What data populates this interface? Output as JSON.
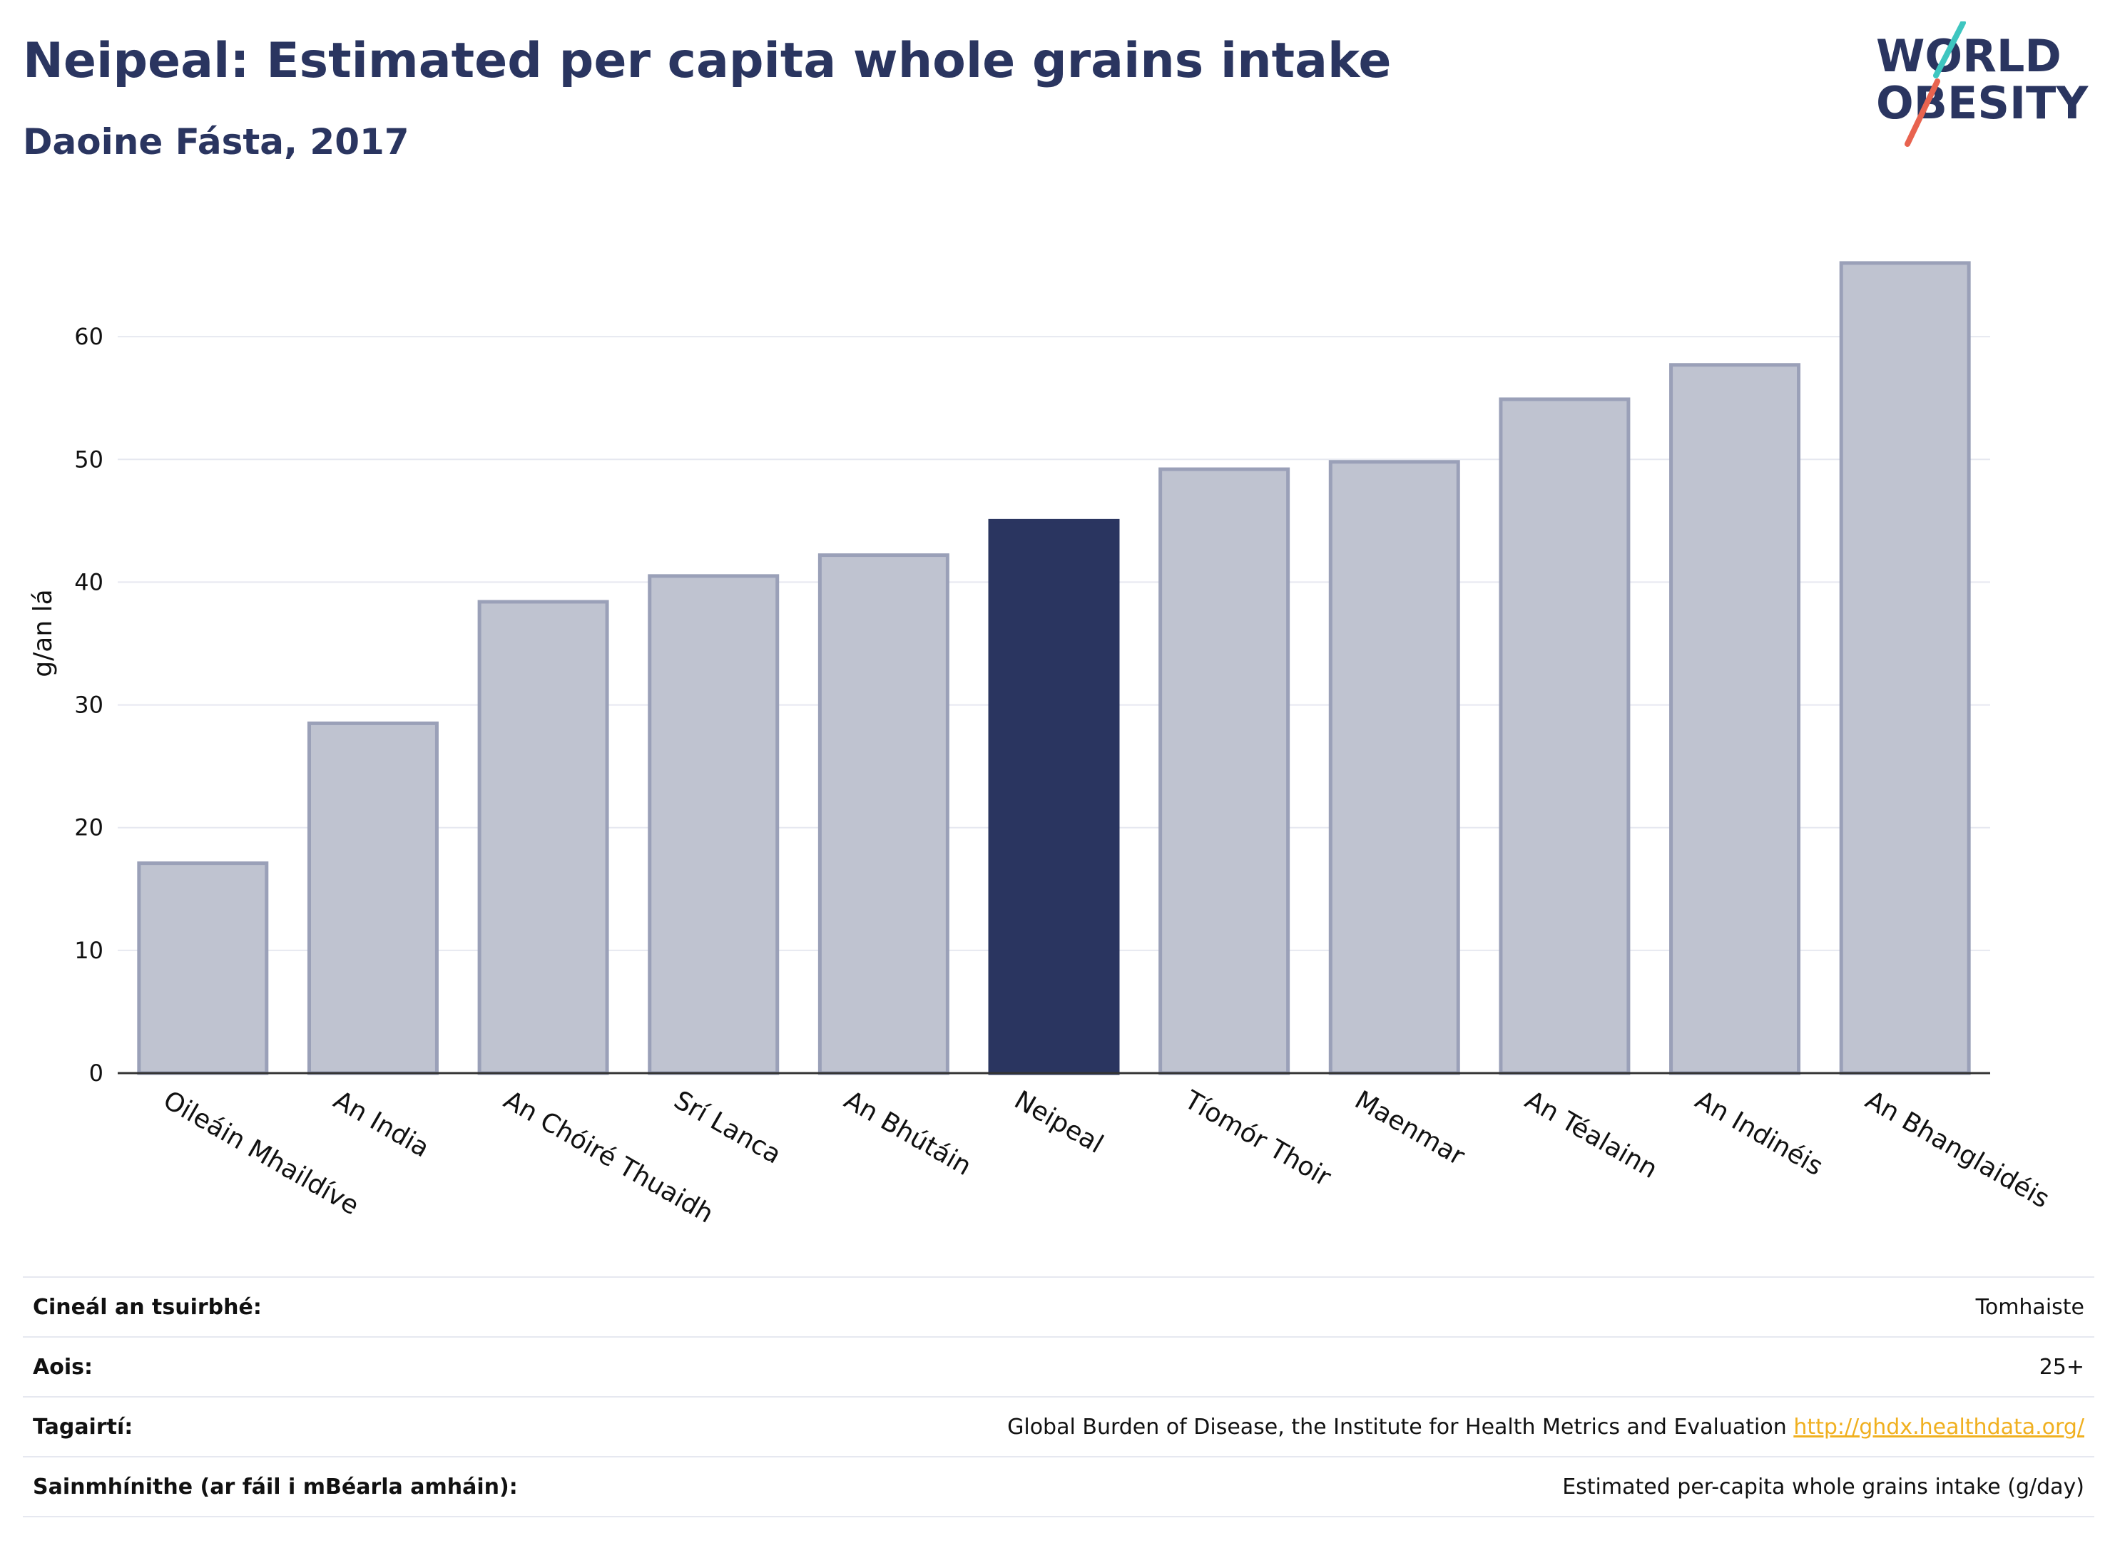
{
  "header": {
    "title": "Neipeal: Estimated per capita whole grains intake",
    "subtitle": "Daoine Fásta, 2017"
  },
  "logo": {
    "line1": "WORLD",
    "line2": "OBESITY",
    "slash_colors": [
      "#3ec6c0",
      "#e8634f"
    ]
  },
  "colors": {
    "bar": "#bfc3d0",
    "bar_border": "#9aa0b8",
    "highlight": "#2a3560",
    "grid": "#e6e8f0",
    "axis": "#333333"
  },
  "chart_data": {
    "type": "bar",
    "title": "Neipeal: Estimated per capita whole grains intake",
    "subtitle": "Daoine Fásta, 2017",
    "xlabel": "",
    "ylabel": "g/an lá",
    "categories": [
      "Oileáin Mhaildíve",
      "An India",
      "An Chóiré Thuaidh",
      "Srí Lanca",
      "An Bhútáin",
      "Neipeal",
      "Tíomór Thoir",
      "Maenmar",
      "An Téalainn",
      "An Indinéis",
      "An Bhanglaidéis"
    ],
    "values": [
      17.1,
      28.5,
      38.4,
      40.5,
      42.2,
      45.0,
      49.2,
      49.8,
      54.9,
      57.7,
      66.0
    ],
    "highlight": "Neipeal",
    "ylim": [
      0,
      70
    ],
    "yticks": [
      0,
      10,
      20,
      30,
      40,
      50,
      60
    ],
    "grid": true,
    "legend": "none"
  },
  "info": [
    {
      "label": "Cineál an tsuirbhé:",
      "value": "Tomhaiste"
    },
    {
      "label": "Aois:",
      "value": "25+"
    },
    {
      "label": "Tagairtí:",
      "value": "Global Burden of Disease, the Institute for Health Metrics and Evaluation",
      "link": "http://ghdx.healthdata.org/"
    },
    {
      "label": "Sainmhínithe (ar fáil i mBéarla amháin):",
      "value": "Estimated per-capita whole grains intake (g/day)"
    }
  ]
}
